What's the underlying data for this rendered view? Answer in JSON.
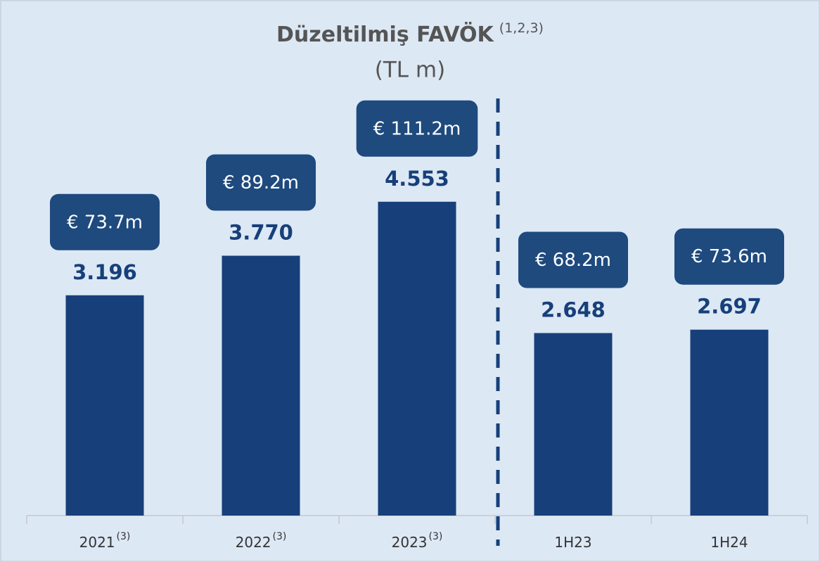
{
  "chart_data": {
    "type": "bar",
    "title": "Düzeltilmiş FAVÖK",
    "title_note": "(1,2,3)",
    "subtitle": "(TL m)",
    "categories": [
      "2021",
      "2022",
      "2023",
      "1H23",
      "1H24"
    ],
    "category_notes": [
      "(3)",
      "(3)",
      "(3)",
      null,
      null
    ],
    "values": [
      3196,
      3770,
      4553,
      2648,
      2697
    ],
    "value_labels": [
      "3.196",
      "3.770",
      "4.553",
      "2.648",
      "2.697"
    ],
    "eur_labels": [
      "€ 73.7m",
      "€ 89.2m",
      "€ 111.2m",
      "€ 68.2m",
      "€ 73.6m"
    ],
    "color": "#17407a",
    "ylim": [
      0,
      6000
    ]
  }
}
